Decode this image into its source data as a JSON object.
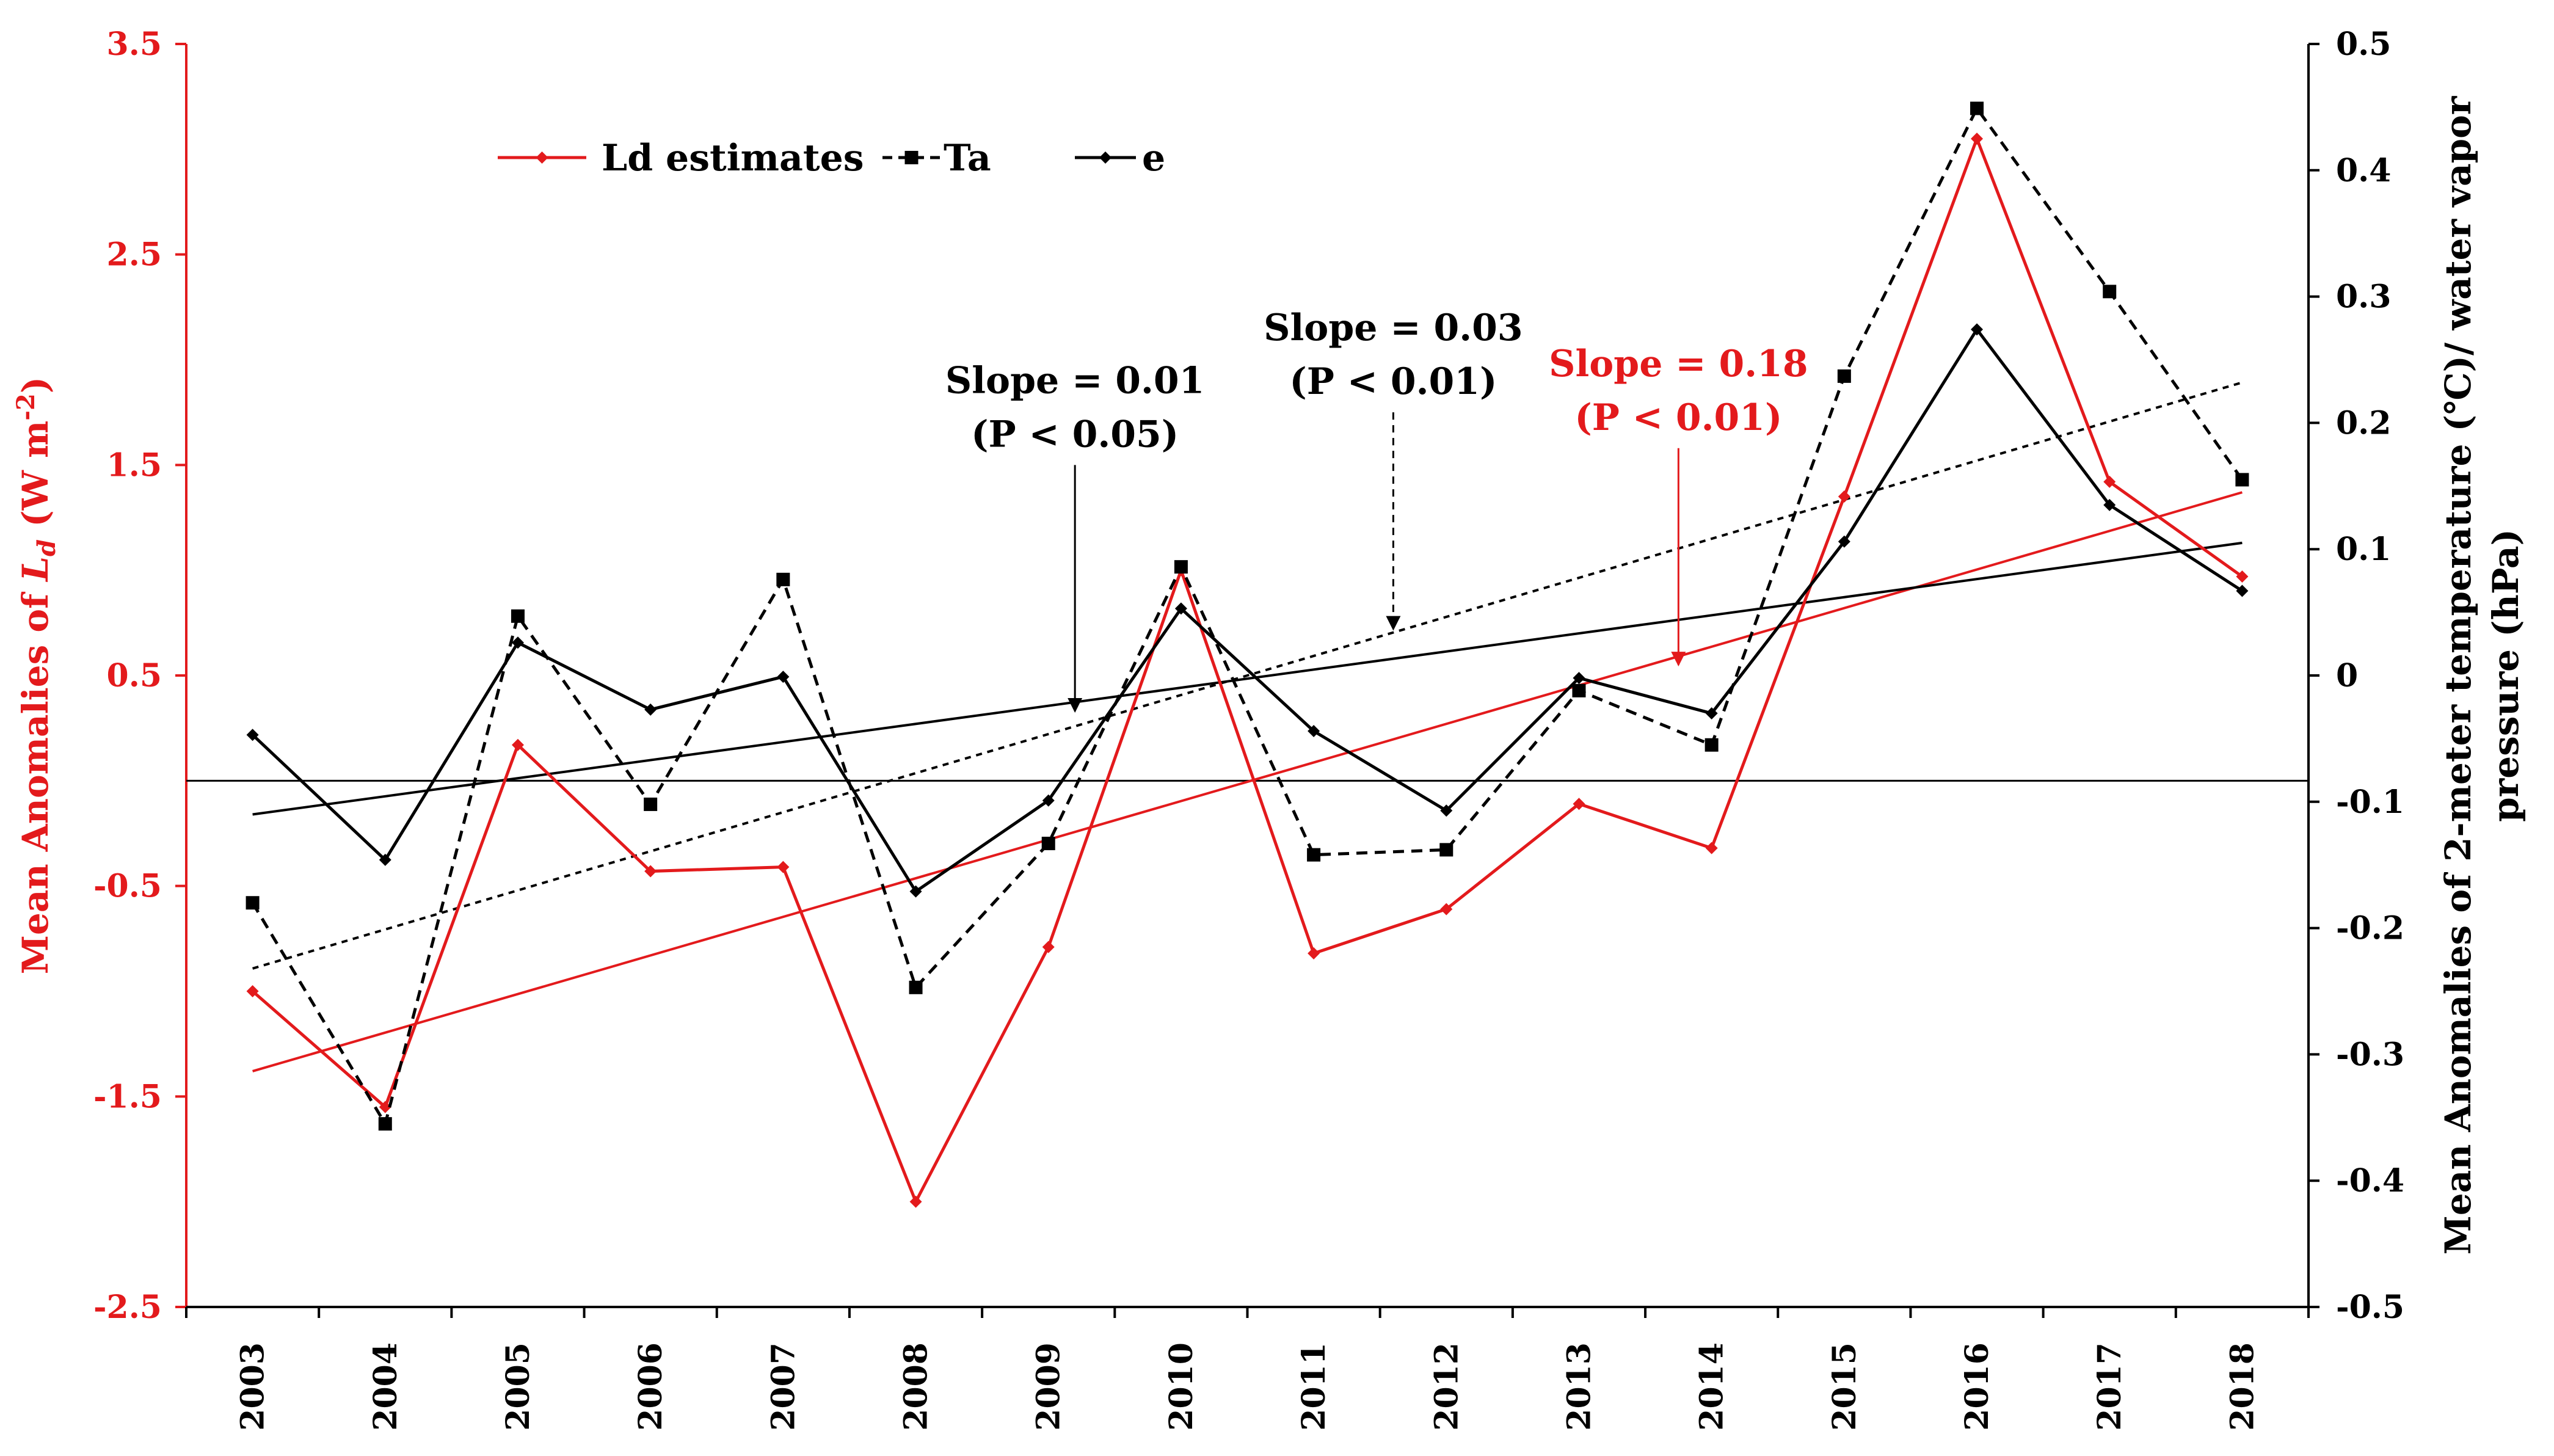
{
  "chart_data": {
    "type": "line",
    "categories": [
      "2003",
      "2004",
      "2005",
      "2006",
      "2007",
      "2008",
      "2009",
      "2010",
      "2011",
      "2012",
      "2013",
      "2014",
      "2015",
      "2016",
      "2017",
      "2018"
    ],
    "series": [
      {
        "name": "Ld estimates",
        "axis": "left",
        "color": "#e31a1c",
        "line_style": "solid",
        "marker": "diamond",
        "values": [
          -1.0,
          -1.55,
          0.17,
          -0.43,
          -0.41,
          -2.0,
          -0.79,
          1.0,
          -0.82,
          -0.61,
          -0.11,
          -0.32,
          1.35,
          3.05,
          1.42,
          0.97
        ]
      },
      {
        "name": "Ta",
        "axis": "right",
        "color": "#000000",
        "line_style": "dashed",
        "marker": "square",
        "values": [
          -0.18,
          -0.355,
          0.047,
          -0.102,
          0.076,
          -0.247,
          -0.133,
          0.086,
          -0.142,
          -0.138,
          -0.012,
          -0.055,
          0.237,
          0.449,
          0.304,
          0.155
        ]
      },
      {
        "name": "e",
        "axis": "right",
        "color": "#000000",
        "line_style": "solid",
        "marker": "diamond",
        "values": [
          -0.047,
          -0.146,
          0.026,
          -0.027,
          -0.001,
          -0.171,
          -0.099,
          0.053,
          -0.044,
          -0.107,
          -0.002,
          -0.03,
          0.106,
          0.274,
          0.135,
          0.067
        ]
      }
    ],
    "trend_lines": [
      {
        "series": "Ld estimates",
        "axis": "left",
        "color": "#e31a1c",
        "style": "solid",
        "start": -1.38,
        "end": 1.37
      },
      {
        "series": "Ta",
        "axis": "right",
        "color": "#000000",
        "style": "dotted",
        "start": -0.232,
        "end": 0.232
      },
      {
        "series": "e",
        "axis": "right",
        "color": "#000000",
        "style": "solid",
        "start": -0.11,
        "end": 0.105
      }
    ],
    "reference_line": {
      "axis": "left",
      "value": 0
    },
    "annotations": [
      {
        "line1": "Slope = 0.01",
        "line2": "(P < 0.05)",
        "color": "#000000",
        "arrow_style": "solid",
        "arrow_year_index": 6.2,
        "arrow_target_axis": "left",
        "arrow_target": 0.33,
        "arrow_top": 1.5
      },
      {
        "line1": "Slope = 0.03",
        "line2": "(P < 0.01)",
        "color": "#000000",
        "arrow_style": "dashed",
        "arrow_year_index": 8.6,
        "arrow_target_axis": "left",
        "arrow_target": 0.72,
        "arrow_top": 1.75
      },
      {
        "line1": "Slope = 0.18",
        "line2": "(P < 0.01)",
        "color": "#e31a1c",
        "arrow_style": "solid",
        "arrow_year_index": 10.75,
        "arrow_target_axis": "left",
        "arrow_target": 0.55,
        "arrow_top": 1.58
      }
    ],
    "left_axis": {
      "title": "Mean  Anomalies of  L_d (W m-2)",
      "title_prefix": "Mean  Anomalies of  ",
      "title_symbol": "L",
      "title_subscript": "d",
      "title_unit": " (W m",
      "title_exponent": "-2",
      "title_close": ")",
      "ylim": [
        -2.5,
        3.5
      ],
      "ticks": [
        "-2.5",
        "-1.5",
        "-0.5",
        "0.5",
        "1.5",
        "2.5",
        "3.5"
      ],
      "color": "#e31a1c"
    },
    "right_axis": {
      "title_line1": "Mean Anomalies of 2-meter temperature (℃)/ water vapor",
      "title_line2": "pressure (hPa)",
      "ylim": [
        -0.5,
        0.5
      ],
      "ticks": [
        "-0.5",
        "-0.4",
        "-0.3",
        "-0.2",
        "-0.1",
        "0",
        "0.1",
        "0.2",
        "0.3",
        "0.4",
        "0.5"
      ],
      "color": "#000000"
    },
    "legend": {
      "position": "top-left",
      "entries": [
        "Ld estimates",
        "Ta",
        "e"
      ]
    }
  }
}
